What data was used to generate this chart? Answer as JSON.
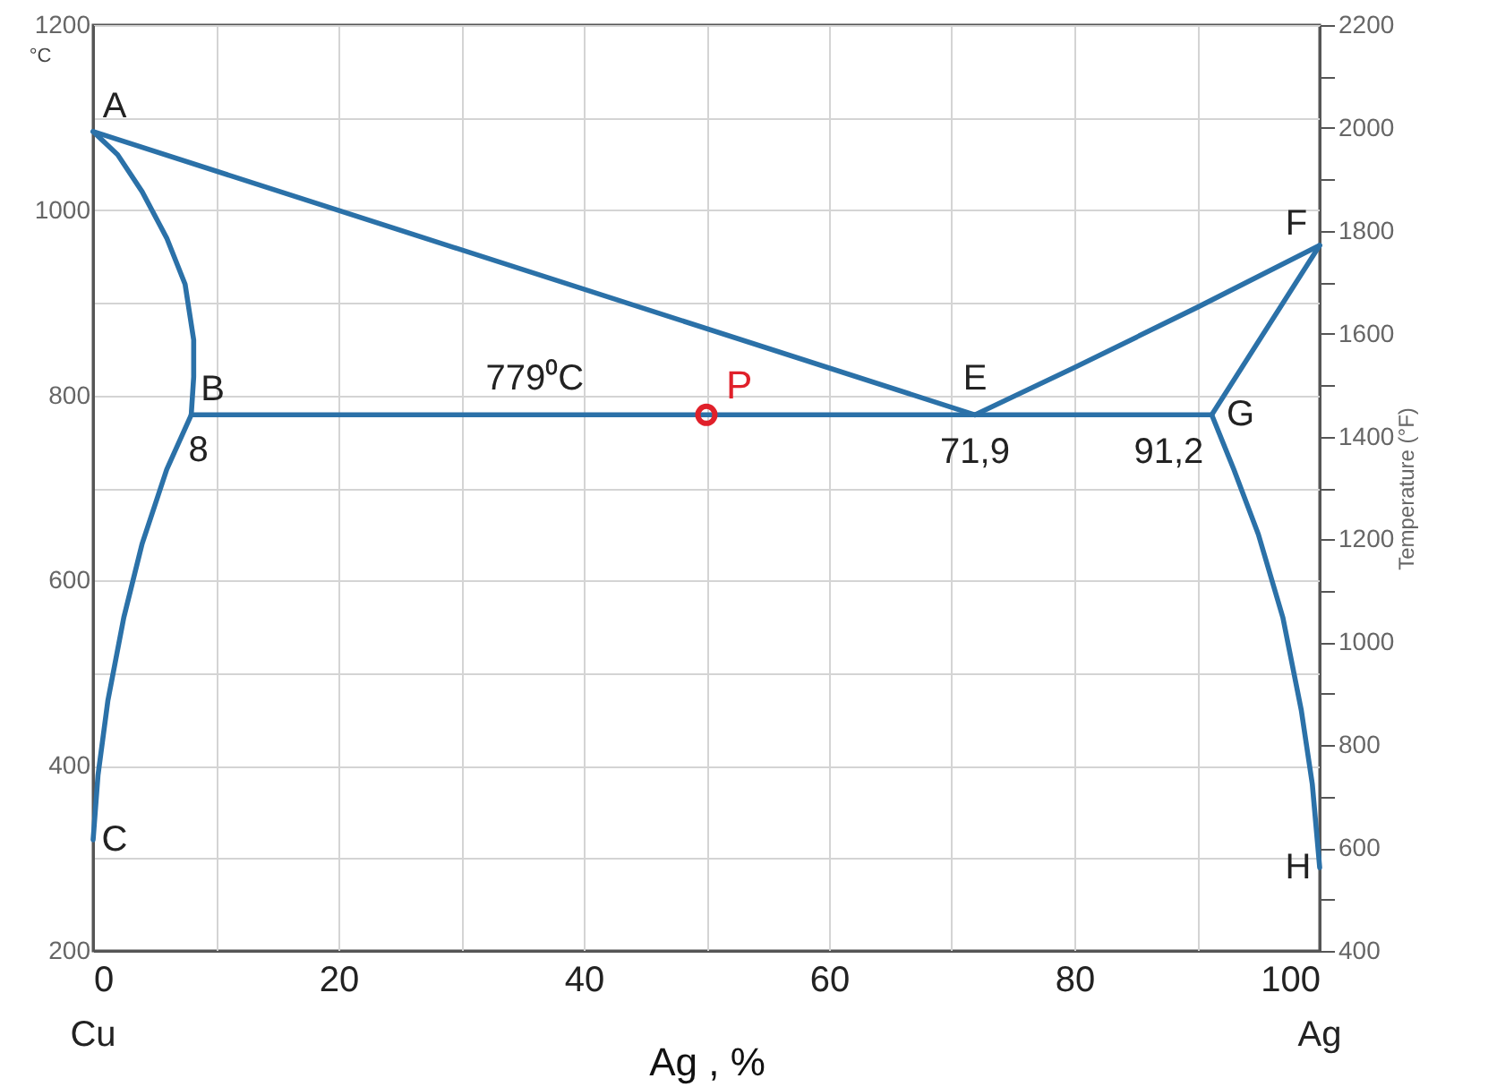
{
  "chart_data": {
    "type": "line",
    "xlabel": "Ag , %",
    "ylabel": "°C",
    "y2label": "Temperature (°F)",
    "xlim": [
      0,
      100
    ],
    "ylim": [
      200,
      1200
    ],
    "y2lim": [
      400,
      2200
    ],
    "xticks": [
      0,
      {
        "value": 10,
        "label": null
      },
      20,
      {
        "value": 30,
        "label": null
      },
      40,
      {
        "value": 50,
        "label": null
      },
      60,
      {
        "value": 70,
        "label": null
      },
      80,
      {
        "value": 90,
        "label": null
      },
      100
    ],
    "yticks": [
      200,
      {
        "value": 300,
        "label": null
      },
      400,
      {
        "value": 500,
        "label": null
      },
      600,
      {
        "value": 700,
        "label": null
      },
      800,
      {
        "value": 900,
        "label": null
      },
      1000,
      {
        "value": 1100,
        "label": null
      },
      1200
    ],
    "y2ticks": [
      400,
      {
        "value": 500,
        "label": null
      },
      600,
      {
        "value": 700,
        "label": null
      },
      800,
      {
        "value": 900,
        "label": null
      },
      1000,
      {
        "value": 1100,
        "label": null
      },
      1200,
      {
        "value": 1300,
        "label": null
      },
      1400,
      {
        "value": 1500,
        "label": null
      },
      1600,
      {
        "value": 1700,
        "label": null
      },
      1800,
      {
        "value": 1900,
        "label": null
      },
      2000,
      {
        "value": 2100,
        "label": null
      },
      2200
    ],
    "grid": true,
    "line_style": "solid",
    "marker": "none",
    "series": [
      {
        "color": "#2b71a8",
        "x": [
          0,
          71.9
        ],
        "values": [
          1085,
          779
        ]
      },
      {
        "color": "#2b71a8",
        "x": [
          71.9,
          80,
          90,
          100
        ],
        "values": [
          779,
          830,
          895,
          962
        ]
      },
      {
        "color": "#2b71a8",
        "x": [
          100,
          91.2
        ],
        "values": [
          962,
          779
        ]
      },
      {
        "color": "#2b71a8",
        "x": [
          8,
          91.2
        ],
        "values": [
          779,
          779
        ]
      },
      {
        "color": "#2b71a8",
        "x": [
          0,
          2,
          4,
          6,
          7.5,
          8.2,
          8.2,
          8,
          6,
          4,
          2.5,
          1.2,
          0.4,
          0
        ],
        "values": [
          1085,
          1060,
          1020,
          970,
          920,
          860,
          820,
          779,
          720,
          640,
          560,
          470,
          390,
          320
        ]
      },
      {
        "color": "#2b71a8",
        "x": [
          91.2,
          93,
          95,
          97,
          98.5,
          99.4,
          100
        ],
        "values": [
          779,
          720,
          650,
          560,
          460,
          380,
          290
        ]
      },
      {
        "name": "P",
        "type": "scatter",
        "marker": "circle",
        "color": "#e0202a",
        "x": [
          50
        ],
        "values": [
          779
        ]
      }
    ],
    "annotations": [
      {
        "text": "A",
        "x": 0,
        "y": 1085
      },
      {
        "text": "B",
        "x": 8,
        "y": 779
      },
      {
        "text": "C",
        "x": 0,
        "y": 320
      },
      {
        "text": "E",
        "x": 71.9,
        "y": 779
      },
      {
        "text": "F",
        "x": 100,
        "y": 962
      },
      {
        "text": "G",
        "x": 91.2,
        "y": 779
      },
      {
        "text": "H",
        "x": 100,
        "y": 290
      },
      {
        "text": "8",
        "x": 8,
        "y": 779
      },
      {
        "text": "71,9",
        "x": 71.9,
        "y": 779
      },
      {
        "text": "91,2",
        "x": 91.2,
        "y": 779
      },
      {
        "text": "779⁰C",
        "x": 36,
        "y": 779
      },
      "Cu",
      "Ag"
    ]
  }
}
